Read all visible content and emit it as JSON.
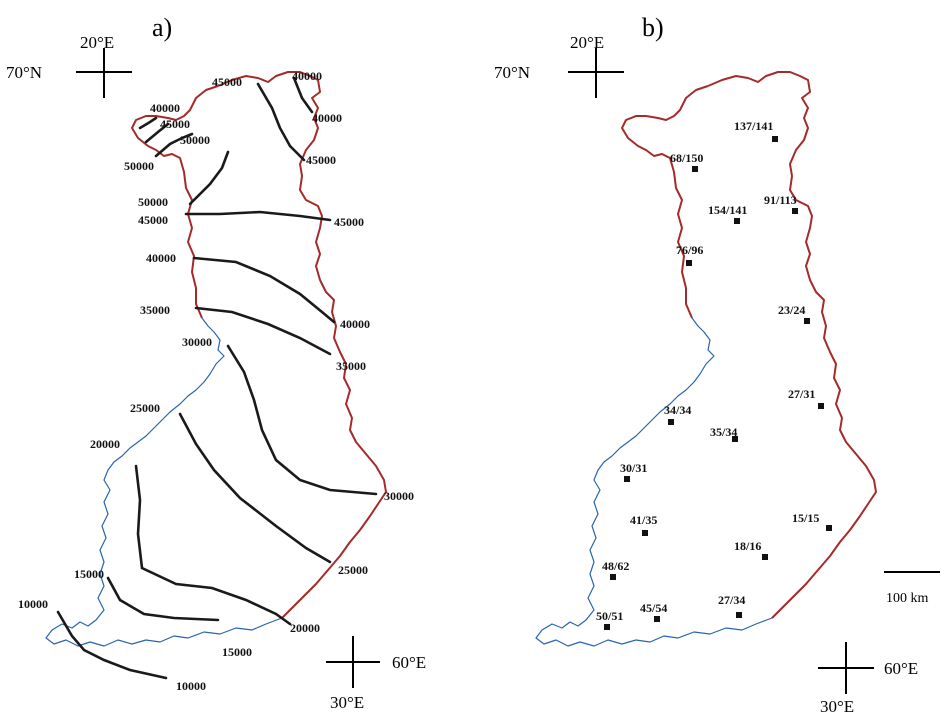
{
  "panels": {
    "a": {
      "label": "a)",
      "nw_lon": "20°E",
      "nw_lat": "70°N",
      "se_lon": "30°E",
      "se_lat": "60°E",
      "isoline_labels": [
        "45000",
        "40000",
        "40000",
        "45000",
        "40000",
        "45000",
        "50000",
        "50000",
        "50000",
        "45000",
        "45000",
        "40000",
        "40000",
        "35000",
        "35000",
        "30000",
        "25000",
        "30000",
        "20000",
        "25000",
        "15000",
        "20000",
        "10000",
        "15000",
        "10000"
      ]
    },
    "b": {
      "label": "b)",
      "nw_lon": "20°E",
      "nw_lat": "70°N",
      "se_lon": "30°E",
      "se_lat": "60°E",
      "scale_label": "100 km",
      "sites": [
        "137/141",
        "68/150",
        "91/113",
        "154/141",
        "76/96",
        "23/24",
        "27/31",
        "34/34",
        "35/34",
        "30/31",
        "15/15",
        "41/35",
        "18/16",
        "48/62",
        "27/34",
        "45/54",
        "50/51"
      ]
    }
  },
  "colors": {
    "border": "#a52a2a",
    "coast": "#2a64b0",
    "isoline": "#1a1a1a"
  }
}
